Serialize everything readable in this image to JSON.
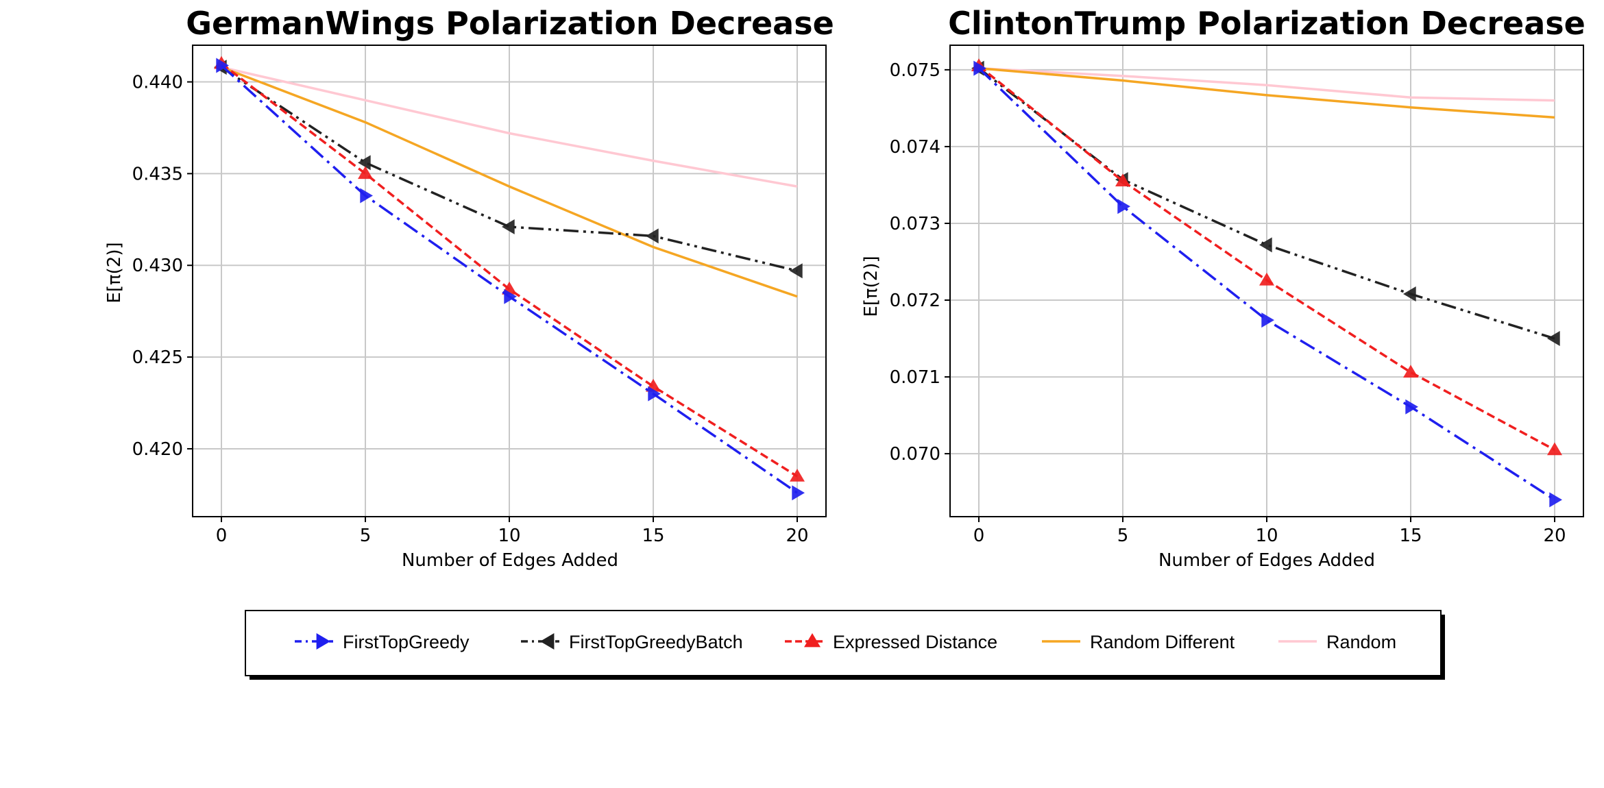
{
  "chart_data": [
    {
      "type": "line",
      "title": "GermanWings Polarization Decrease",
      "xlabel": "Number of Edges Added",
      "ylabel": "E[π(2)]",
      "x": [
        0,
        5,
        10,
        15,
        20
      ],
      "xticks": [
        "0",
        "5",
        "10",
        "15",
        "20"
      ],
      "xlim": [
        -1,
        21
      ],
      "yticks": [
        "0.420",
        "0.425",
        "0.430",
        "0.435",
        "0.440"
      ],
      "ytick_values": [
        0.42,
        0.425,
        0.43,
        0.435,
        0.44
      ],
      "ylim": [
        0.4163,
        0.442
      ],
      "grid": true,
      "series": [
        {
          "name": "FirstTopGreedy",
          "values": [
            0.4409,
            0.4338,
            0.4283,
            0.423,
            0.4176
          ]
        },
        {
          "name": "FirstTopGreedyBatch",
          "values": [
            0.4408,
            0.4356,
            0.4321,
            0.4316,
            0.4297
          ]
        },
        {
          "name": "Expressed Distance",
          "values": [
            0.441,
            0.435,
            0.4287,
            0.4234,
            0.4185
          ]
        },
        {
          "name": "Random Different",
          "values": [
            0.4408,
            0.4378,
            0.4343,
            0.431,
            0.4283
          ]
        },
        {
          "name": "Random",
          "values": [
            0.4408,
            0.439,
            0.4372,
            0.4357,
            0.4343
          ]
        }
      ]
    },
    {
      "type": "line",
      "title": "ClintonTrump Polarization Decrease",
      "xlabel": "Number of Edges Added",
      "ylabel": "E[π(2)]",
      "x": [
        0,
        5,
        10,
        15,
        20
      ],
      "xticks": [
        "0",
        "5",
        "10",
        "15",
        "20"
      ],
      "xlim": [
        -1,
        21
      ],
      "yticks": [
        "0.070",
        "0.071",
        "0.072",
        "0.073",
        "0.074",
        "0.075"
      ],
      "ytick_values": [
        0.07,
        0.071,
        0.072,
        0.073,
        0.074,
        0.075
      ],
      "ylim": [
        0.06918,
        0.07532
      ],
      "grid": true,
      "series": [
        {
          "name": "FirstTopGreedy",
          "values": [
            0.07502,
            0.07322,
            0.07174,
            0.07061,
            0.0694
          ]
        },
        {
          "name": "FirstTopGreedyBatch",
          "values": [
            0.07502,
            0.07357,
            0.07272,
            0.07208,
            0.0715
          ]
        },
        {
          "name": "Expressed Distance",
          "values": [
            0.07505,
            0.07355,
            0.07226,
            0.07106,
            0.07005
          ]
        },
        {
          "name": "Random Different",
          "values": [
            0.07502,
            0.07486,
            0.07467,
            0.07451,
            0.07438
          ]
        },
        {
          "name": "Random",
          "values": [
            0.07502,
            0.07492,
            0.0748,
            0.07464,
            0.0746
          ]
        }
      ]
    }
  ],
  "series_styles": [
    {
      "color": "#1f1fef",
      "dash": "24 8 4 8",
      "marker": "triangle-right"
    },
    {
      "color": "#222222",
      "dash": "22 7 4 7 4 7",
      "marker": "triangle-left"
    },
    {
      "color": "#f01f1f",
      "dash": "12 6",
      "marker": "triangle-up"
    },
    {
      "color": "#f5a623",
      "dash": "",
      "marker": "none"
    },
    {
      "color": "#ffc8d2",
      "dash": "",
      "marker": "none"
    }
  ],
  "legend": {
    "placement": "bottom-center",
    "items": [
      "FirstTopGreedy",
      "FirstTopGreedyBatch",
      "Expressed Distance",
      "Random Different",
      "Random"
    ]
  }
}
